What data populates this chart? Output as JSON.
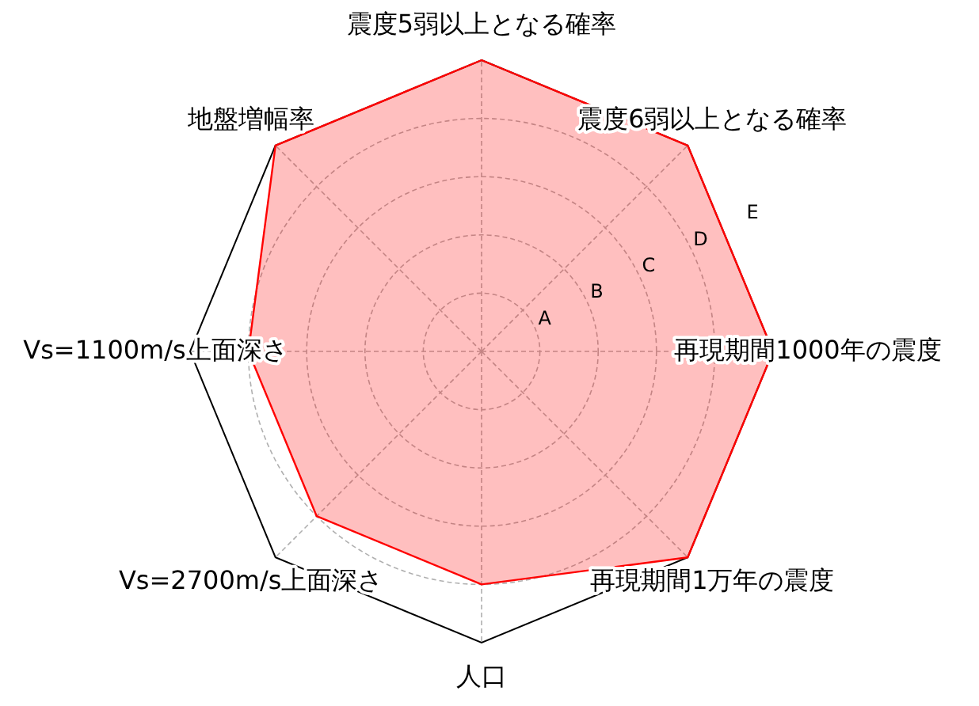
{
  "chart_data": {
    "type": "radar",
    "categories": [
      "震度5弱以上となる確率",
      "震度6弱以上となる確率",
      "再現期間1000年の震度",
      "再現期間1万年の震度",
      "人口",
      "Vs=2700m/s上面深さ",
      "Vs=1100m/s上面深さ",
      "地盤増幅率"
    ],
    "series": [
      {
        "color": "#ff0000",
        "values": [
          5,
          5,
          5,
          5,
          4,
          4,
          4,
          5
        ]
      }
    ],
    "ylim": [
      0,
      5
    ],
    "yticks": [
      {
        "value": 1,
        "label": "A"
      },
      {
        "value": 2,
        "label": "B"
      },
      {
        "value": 3,
        "label": "C"
      },
      {
        "value": 4,
        "label": "D"
      },
      {
        "value": 5,
        "label": "E"
      }
    ],
    "grid": true
  }
}
